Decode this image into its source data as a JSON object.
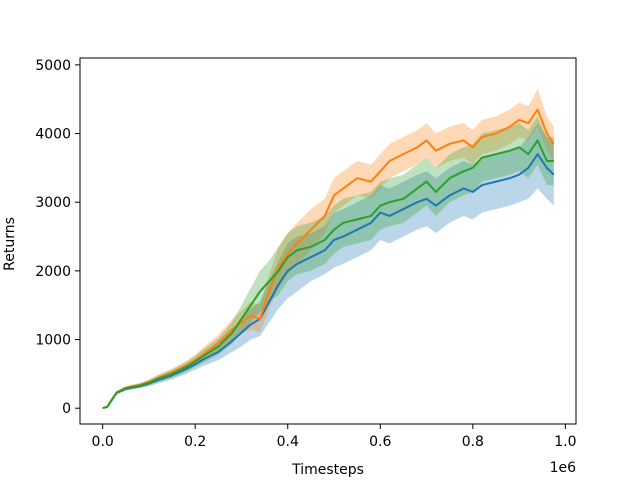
{
  "chart_data": {
    "type": "line",
    "title": "",
    "xlabel": "Timesteps",
    "ylabel": "Returns",
    "x_offset_label": "1e6",
    "xlim": [
      -0.049,
      1.023
    ],
    "ylim": [
      -230,
      5100
    ],
    "x_ticks": [
      0.0,
      0.2,
      0.4,
      0.6,
      0.8,
      1.0
    ],
    "x_tick_labels": [
      "0.0",
      "0.2",
      "0.4",
      "0.6",
      "0.8",
      "1.0"
    ],
    "y_ticks": [
      0,
      1000,
      2000,
      3000,
      4000,
      5000
    ],
    "y_tick_labels": [
      "0",
      "1000",
      "2000",
      "3000",
      "4000",
      "5000"
    ],
    "grid": false,
    "legend": "none",
    "series": [
      {
        "color": "#1f77b4",
        "x": [
          0.0,
          0.01,
          0.02,
          0.03,
          0.05,
          0.08,
          0.1,
          0.12,
          0.15,
          0.18,
          0.2,
          0.22,
          0.25,
          0.28,
          0.3,
          0.32,
          0.34,
          0.36,
          0.38,
          0.4,
          0.42,
          0.45,
          0.48,
          0.5,
          0.52,
          0.55,
          0.58,
          0.6,
          0.62,
          0.65,
          0.68,
          0.7,
          0.72,
          0.75,
          0.78,
          0.8,
          0.82,
          0.85,
          0.88,
          0.9,
          0.92,
          0.94,
          0.96,
          0.975
        ],
        "y": [
          0,
          20,
          120,
          220,
          280,
          320,
          360,
          410,
          480,
          570,
          640,
          720,
          820,
          980,
          1100,
          1220,
          1300,
          1550,
          1800,
          2000,
          2100,
          2200,
          2300,
          2450,
          2500,
          2600,
          2700,
          2850,
          2800,
          2900,
          3000,
          3050,
          2950,
          3100,
          3200,
          3150,
          3250,
          3300,
          3350,
          3400,
          3500,
          3700,
          3500,
          3400
        ],
        "lower": [
          0,
          15,
          100,
          200,
          260,
          290,
          320,
          360,
          420,
          500,
          560,
          620,
          700,
          820,
          900,
          1000,
          1050,
          1250,
          1450,
          1600,
          1700,
          1850,
          1950,
          2050,
          2100,
          2200,
          2300,
          2450,
          2400,
          2500,
          2600,
          2650,
          2550,
          2700,
          2800,
          2750,
          2850,
          2900,
          2950,
          3000,
          3050,
          3200,
          3050,
          2950
        ],
        "upper": [
          0,
          25,
          140,
          240,
          300,
          350,
          400,
          460,
          540,
          640,
          720,
          820,
          940,
          1140,
          1300,
          1450,
          1550,
          1850,
          2150,
          2400,
          2500,
          2550,
          2650,
          2850,
          2900,
          3000,
          3100,
          3250,
          3200,
          3300,
          3400,
          3450,
          3350,
          3500,
          3600,
          3550,
          3650,
          3700,
          3750,
          3800,
          3950,
          4150,
          3950,
          3850
        ]
      },
      {
        "color": "#ff7f0e",
        "x": [
          0.0,
          0.01,
          0.02,
          0.03,
          0.05,
          0.08,
          0.1,
          0.12,
          0.15,
          0.18,
          0.2,
          0.22,
          0.25,
          0.28,
          0.3,
          0.32,
          0.34,
          0.36,
          0.38,
          0.4,
          0.42,
          0.45,
          0.48,
          0.5,
          0.52,
          0.55,
          0.58,
          0.6,
          0.62,
          0.65,
          0.68,
          0.7,
          0.72,
          0.75,
          0.78,
          0.8,
          0.82,
          0.85,
          0.88,
          0.9,
          0.92,
          0.94,
          0.96,
          0.975
        ],
        "y": [
          0,
          20,
          130,
          230,
          300,
          340,
          380,
          440,
          520,
          620,
          700,
          800,
          950,
          1150,
          1250,
          1350,
          1300,
          1700,
          2050,
          2250,
          2400,
          2600,
          2800,
          3100,
          3200,
          3350,
          3300,
          3450,
          3600,
          3700,
          3800,
          3900,
          3750,
          3850,
          3900,
          3800,
          3950,
          4000,
          4100,
          4200,
          4150,
          4350,
          4000,
          3850
        ],
        "lower": [
          0,
          15,
          110,
          210,
          275,
          310,
          340,
          390,
          460,
          550,
          620,
          700,
          830,
          1000,
          1080,
          1150,
          1100,
          1450,
          1750,
          1950,
          2100,
          2300,
          2550,
          2850,
          2950,
          3100,
          3050,
          3200,
          3350,
          3450,
          3550,
          3650,
          3500,
          3600,
          3650,
          3550,
          3700,
          3750,
          3850,
          3950,
          3900,
          4100,
          3750,
          3600
        ],
        "upper": [
          0,
          25,
          150,
          250,
          325,
          370,
          420,
          490,
          580,
          690,
          780,
          900,
          1070,
          1300,
          1420,
          1550,
          1500,
          1950,
          2350,
          2550,
          2700,
          2900,
          3050,
          3350,
          3450,
          3600,
          3550,
          3700,
          3850,
          3950,
          4050,
          4150,
          4000,
          4100,
          4150,
          4050,
          4200,
          4250,
          4350,
          4450,
          4400,
          4650,
          4250,
          4100
        ]
      },
      {
        "color": "#2ca02c",
        "x": [
          0.0,
          0.01,
          0.02,
          0.03,
          0.05,
          0.08,
          0.1,
          0.12,
          0.15,
          0.18,
          0.2,
          0.22,
          0.25,
          0.28,
          0.3,
          0.32,
          0.34,
          0.36,
          0.38,
          0.4,
          0.42,
          0.45,
          0.48,
          0.5,
          0.52,
          0.55,
          0.58,
          0.6,
          0.62,
          0.65,
          0.68,
          0.7,
          0.72,
          0.75,
          0.78,
          0.8,
          0.82,
          0.85,
          0.88,
          0.9,
          0.92,
          0.94,
          0.96,
          0.975
        ],
        "y": [
          0,
          20,
          125,
          225,
          290,
          330,
          370,
          430,
          500,
          600,
          680,
          770,
          900,
          1100,
          1300,
          1500,
          1700,
          1850,
          2000,
          2200,
          2300,
          2350,
          2450,
          2600,
          2700,
          2750,
          2800,
          2950,
          3000,
          3050,
          3200,
          3300,
          3150,
          3350,
          3450,
          3500,
          3650,
          3700,
          3750,
          3800,
          3700,
          3900,
          3600,
          3600
        ],
        "lower": [
          0,
          15,
          105,
          205,
          265,
          300,
          330,
          380,
          440,
          530,
          600,
          670,
          780,
          940,
          1100,
          1250,
          1400,
          1550,
          1650,
          1850,
          1950,
          2000,
          2100,
          2250,
          2350,
          2400,
          2450,
          2600,
          2650,
          2700,
          2850,
          2950,
          2800,
          3000,
          3100,
          3150,
          3300,
          3350,
          3400,
          3450,
          3350,
          3550,
          3250,
          3250
        ],
        "upper": [
          0,
          25,
          145,
          245,
          315,
          360,
          410,
          480,
          560,
          670,
          760,
          870,
          1020,
          1260,
          1500,
          1750,
          2000,
          2150,
          2350,
          2550,
          2650,
          2700,
          2800,
          2950,
          3050,
          3100,
          3150,
          3300,
          3350,
          3400,
          3550,
          3650,
          3500,
          3700,
          3800,
          3850,
          4000,
          4050,
          4100,
          4150,
          4050,
          4250,
          3950,
          3950
        ]
      }
    ]
  }
}
